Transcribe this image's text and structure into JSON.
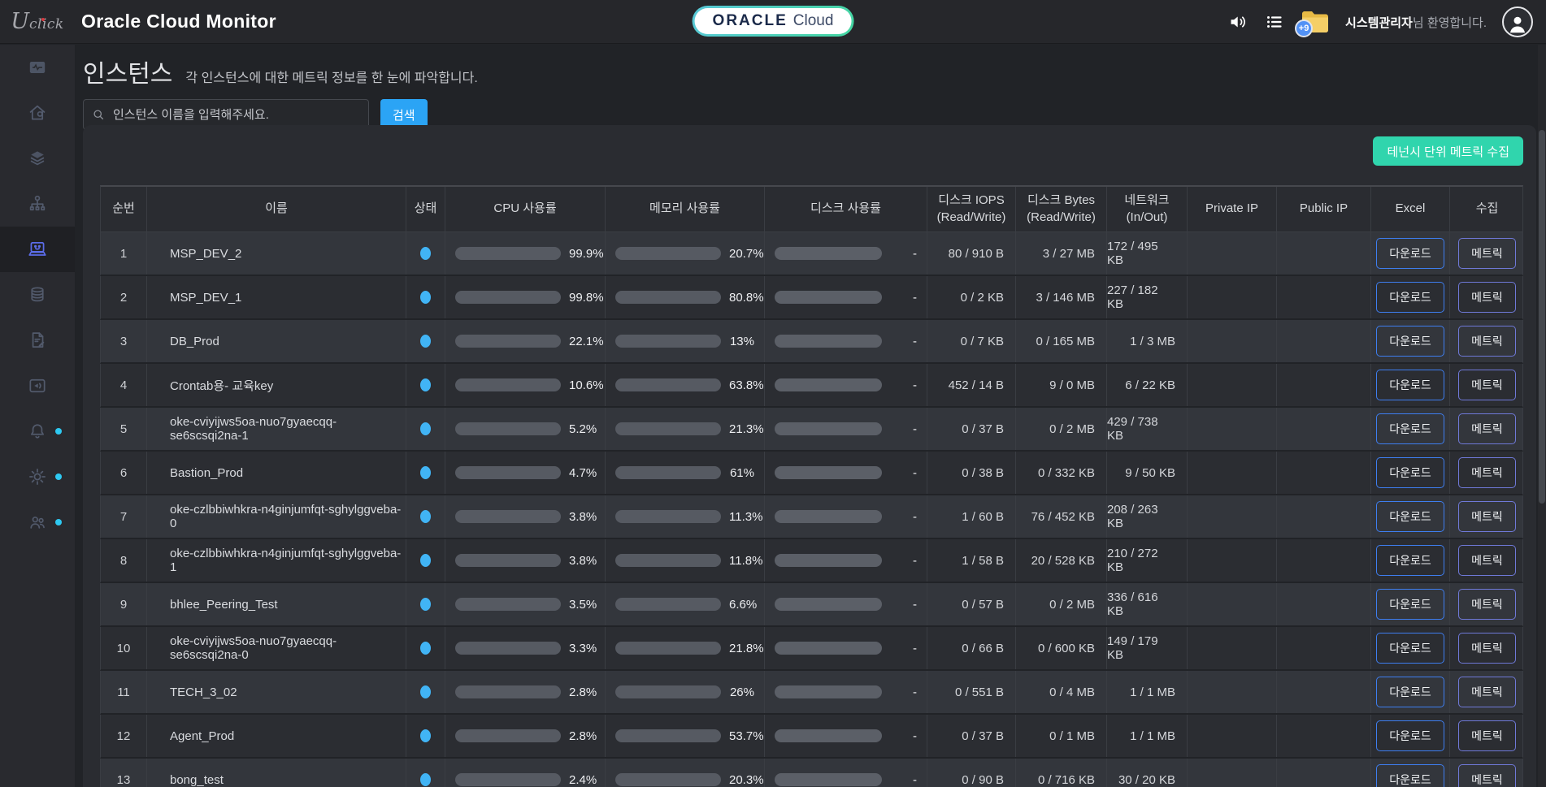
{
  "header": {
    "logo_u": "U",
    "logo_rest": "click",
    "app_title": "Oracle Cloud Monitor",
    "oracle_badge": {
      "bold": "ORACLE",
      "light": "Cloud"
    },
    "notification_count": "+9",
    "welcome_bold": "시스템관리자",
    "welcome_rest": "님 환영합니다.",
    "icons": [
      "speaker-icon",
      "list-icon",
      "folder-icon",
      "avatar"
    ]
  },
  "sidebar": {
    "items": [
      {
        "icon": "activity-monitor-icon",
        "active": false,
        "badge": false
      },
      {
        "icon": "home-icon",
        "active": false,
        "badge": false
      },
      {
        "icon": "layers-icon",
        "active": false,
        "badge": false
      },
      {
        "icon": "org-chart-icon",
        "active": false,
        "badge": false
      },
      {
        "icon": "instances-laptop-icon",
        "active": true,
        "badge": false
      },
      {
        "icon": "database-icon",
        "active": false,
        "badge": false
      },
      {
        "icon": "document-edit-icon",
        "active": false,
        "badge": false
      },
      {
        "icon": "announcement-icon",
        "active": false,
        "badge": false
      },
      {
        "icon": "bell-icon",
        "active": false,
        "badge": true
      },
      {
        "icon": "settings-gear-icon",
        "active": false,
        "badge": true
      },
      {
        "icon": "users-icon",
        "active": false,
        "badge": true
      }
    ]
  },
  "page": {
    "title": "인스턴스",
    "subtitle": "각 인스턴스에 대한 메트릭 정보를 한 눈에 파악합니다.",
    "search_placeholder": "인스턴스 이름을 입력해주세요.",
    "search_button": "검색",
    "collect_button": "테넌시 단위 메트릭 수집"
  },
  "table": {
    "columns": [
      {
        "label": "순번"
      },
      {
        "label": "이름"
      },
      {
        "label": "상태"
      },
      {
        "label": "CPU 사용률"
      },
      {
        "label": "메모리 사용률"
      },
      {
        "label": "디스크 사용률"
      },
      {
        "label": "디스크 IOPS",
        "sub": "(Read/Write)"
      },
      {
        "label": "디스크 Bytes",
        "sub": "(Read/Write)"
      },
      {
        "label": "네트워크",
        "sub": "(In/Out)"
      },
      {
        "label": "Private IP"
      },
      {
        "label": "Public IP"
      },
      {
        "label": "Excel"
      },
      {
        "label": "수집"
      }
    ],
    "download_label": "다운로드",
    "metric_label": "메트릭",
    "rows": [
      {
        "no": "1",
        "name": "MSP_DEV_2",
        "cpu_pct": 99.9,
        "cpu": "99.9%",
        "mem_pct": 20.7,
        "mem": "20.7%",
        "disk": "-",
        "iops": "80 / 910 B",
        "bytes": "3 / 27 MB",
        "net": "172 / 495 KB",
        "private_ip": "",
        "public_ip": ""
      },
      {
        "no": "2",
        "name": "MSP_DEV_1",
        "cpu_pct": 99.8,
        "cpu": "99.8%",
        "mem_pct": 80.8,
        "mem": "80.8%",
        "disk": "-",
        "iops": "0 / 2 KB",
        "bytes": "3 / 146 MB",
        "net": "227 / 182 KB",
        "private_ip": "",
        "public_ip": ""
      },
      {
        "no": "3",
        "name": "DB_Prod",
        "cpu_pct": 22.1,
        "cpu": "22.1%",
        "mem_pct": 13,
        "mem": "13%",
        "disk": "-",
        "iops": "0 / 7 KB",
        "bytes": "0 / 165 MB",
        "net": "1 / 3 MB",
        "private_ip": "",
        "public_ip": ""
      },
      {
        "no": "4",
        "name": "Crontab용- 교육key",
        "cpu_pct": 10.6,
        "cpu": "10.6%",
        "mem_pct": 63.8,
        "mem": "63.8%",
        "disk": "-",
        "iops": "452 / 14 B",
        "bytes": "9 / 0 MB",
        "net": "6 / 22 KB",
        "private_ip": "",
        "public_ip": ""
      },
      {
        "no": "5",
        "name": "oke-cviyijws5oa-nuo7gyaecqq-se6scsqi2na-1",
        "cpu_pct": 5.2,
        "cpu": "5.2%",
        "mem_pct": 21.3,
        "mem": "21.3%",
        "disk": "-",
        "iops": "0 / 37 B",
        "bytes": "0 / 2 MB",
        "net": "429 / 738 KB",
        "private_ip": "",
        "public_ip": ""
      },
      {
        "no": "6",
        "name": "Bastion_Prod",
        "cpu_pct": 4.7,
        "cpu": "4.7%",
        "mem_pct": 61,
        "mem": "61%",
        "disk": "-",
        "iops": "0 / 38 B",
        "bytes": "0 / 332 KB",
        "net": "9 / 50 KB",
        "private_ip": "",
        "public_ip": ""
      },
      {
        "no": "7",
        "name": "oke-czlbbiwhkra-n4ginjumfqt-sghylggveba-0",
        "cpu_pct": 3.8,
        "cpu": "3.8%",
        "mem_pct": 11.3,
        "mem": "11.3%",
        "disk": "-",
        "iops": "1 / 60 B",
        "bytes": "76 / 452 KB",
        "net": "208 / 263 KB",
        "private_ip": "",
        "public_ip": ""
      },
      {
        "no": "8",
        "name": "oke-czlbbiwhkra-n4ginjumfqt-sghylggveba-1",
        "cpu_pct": 3.8,
        "cpu": "3.8%",
        "mem_pct": 11.8,
        "mem": "11.8%",
        "disk": "-",
        "iops": "1 / 58 B",
        "bytes": "20 / 528 KB",
        "net": "210 / 272 KB",
        "private_ip": "",
        "public_ip": ""
      },
      {
        "no": "9",
        "name": "bhlee_Peering_Test",
        "cpu_pct": 3.5,
        "cpu": "3.5%",
        "mem_pct": 6.6,
        "mem": "6.6%",
        "disk": "-",
        "iops": "0 / 57 B",
        "bytes": "0 / 2 MB",
        "net": "336 / 616 KB",
        "private_ip": "",
        "public_ip": ""
      },
      {
        "no": "10",
        "name": "oke-cviyijws5oa-nuo7gyaecqq-se6scsqi2na-0",
        "cpu_pct": 3.3,
        "cpu": "3.3%",
        "mem_pct": 21.8,
        "mem": "21.8%",
        "disk": "-",
        "iops": "0 / 66 B",
        "bytes": "0 / 600 KB",
        "net": "149 / 179 KB",
        "private_ip": "",
        "public_ip": ""
      },
      {
        "no": "11",
        "name": "TECH_3_02",
        "cpu_pct": 2.8,
        "cpu": "2.8%",
        "mem_pct": 26,
        "mem": "26%",
        "disk": "-",
        "iops": "0 / 551 B",
        "bytes": "0 / 4 MB",
        "net": "1 / 1 MB",
        "private_ip": "",
        "public_ip": ""
      },
      {
        "no": "12",
        "name": "Agent_Prod",
        "cpu_pct": 2.8,
        "cpu": "2.8%",
        "mem_pct": 53.7,
        "mem": "53.7%",
        "disk": "-",
        "iops": "0 / 37 B",
        "bytes": "0 / 1 MB",
        "net": "1 / 1 MB",
        "private_ip": "",
        "public_ip": ""
      },
      {
        "no": "13",
        "name": "bong_test",
        "cpu_pct": 2.4,
        "cpu": "2.4%",
        "mem_pct": 20.3,
        "mem": "20.3%",
        "disk": "-",
        "iops": "0 / 90 B",
        "bytes": "0 / 716 KB",
        "net": "30 / 20 KB",
        "private_ip": "",
        "public_ip": ""
      }
    ]
  },
  "colors": {
    "accent_blue": "#2ba4f5",
    "collect_teal": "#30d5ad",
    "cpu_bar": "#5a66cc",
    "mem_bar": "#f2b231",
    "status_dot": "#41b4f5",
    "download_border": "#3e7ef0",
    "metric_border": "#6f79d8",
    "sidebar_badge": "#2ec9f2"
  }
}
